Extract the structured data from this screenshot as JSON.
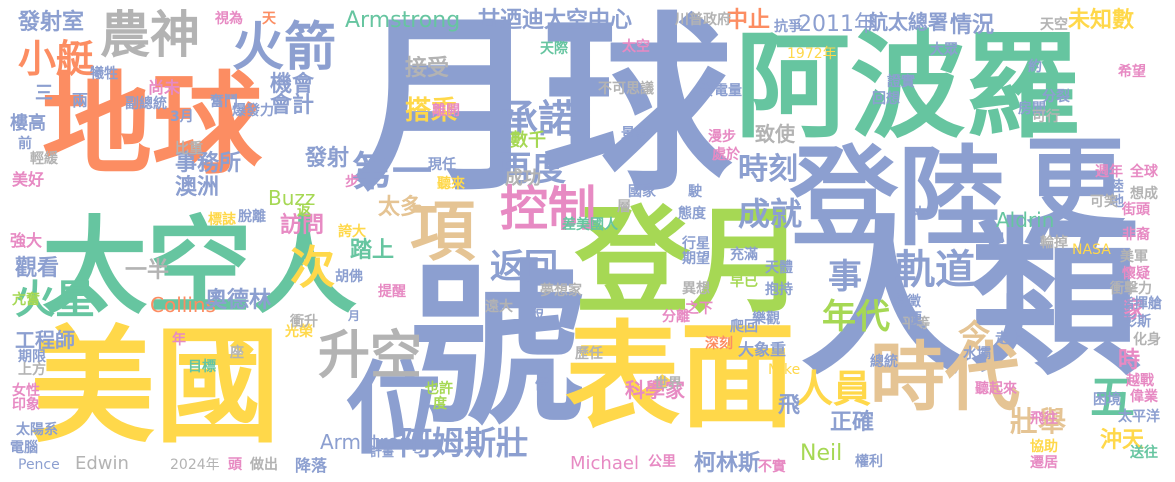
{
  "palette": {
    "blue": "#8c9fd0",
    "green": "#66c5a0",
    "yellow": "#ffd84a",
    "orange": "#fc8d62",
    "pink": "#e78ac3",
    "lime": "#a6d854",
    "tan": "#e5c494",
    "gray": "#b3b3b3"
  },
  "words": [
    {
      "text": "月球",
      "color": "blue"
    },
    {
      "text": "阿波羅",
      "color": "green"
    },
    {
      "text": "地球",
      "color": "orange"
    },
    {
      "text": "太空人",
      "color": "green"
    },
    {
      "text": "美國",
      "color": "yellow"
    },
    {
      "text": "號",
      "color": "blue"
    },
    {
      "text": "登月",
      "color": "lime"
    },
    {
      "text": "登陸",
      "color": "blue"
    },
    {
      "text": "更",
      "color": "blue"
    },
    {
      "text": "人類",
      "color": "blue"
    },
    {
      "text": "表面",
      "color": "yellow"
    },
    {
      "text": "農神",
      "color": "gray"
    },
    {
      "text": "火箭",
      "color": "blue"
    },
    {
      "text": "項",
      "color": "tan"
    },
    {
      "text": "位",
      "color": "blue"
    },
    {
      "text": "時代",
      "color": "tan"
    },
    {
      "text": "升空",
      "color": "gray"
    },
    {
      "text": "控制",
      "color": "pink"
    },
    {
      "text": "承諾",
      "color": "blue"
    },
    {
      "text": "再度",
      "color": "blue"
    },
    {
      "text": "第一",
      "color": "blue"
    },
    {
      "text": "成就",
      "color": "blue"
    },
    {
      "text": "返回",
      "color": "blue"
    },
    {
      "text": "阿姆斯壯",
      "color": "blue"
    },
    {
      "text": "人員",
      "color": "yellow"
    },
    {
      "text": "年代",
      "color": "lime"
    },
    {
      "text": "軌道",
      "color": "blue"
    },
    {
      "text": "事",
      "color": "blue"
    },
    {
      "text": "次",
      "color": "yellow"
    },
    {
      "text": "五",
      "color": "green"
    },
    {
      "text": "令",
      "color": "tan"
    },
    {
      "text": "火星",
      "color": "green"
    },
    {
      "text": "小艇",
      "color": "orange"
    },
    {
      "text": "時刻",
      "color": "blue"
    },
    {
      "text": "發射室",
      "color": "blue"
    },
    {
      "text": "Armstrong",
      "color": "green"
    },
    {
      "text": "甘迺迪太空中心",
      "color": "blue"
    },
    {
      "text": "中止",
      "color": "orange"
    },
    {
      "text": "航太總署",
      "color": "blue"
    },
    {
      "text": "2011年",
      "color": "blue"
    },
    {
      "text": "情況",
      "color": "blue"
    },
    {
      "text": "未知數",
      "color": "yellow"
    },
    {
      "text": "機會",
      "color": "blue"
    },
    {
      "text": "會計",
      "color": "blue"
    },
    {
      "text": "發射",
      "color": "blue"
    },
    {
      "text": "接受",
      "color": "gray"
    },
    {
      "text": "搭乘",
      "color": "yellow"
    },
    {
      "text": "事務所",
      "color": "blue"
    },
    {
      "text": "澳洲",
      "color": "blue"
    },
    {
      "text": "一半",
      "color": "gray"
    },
    {
      "text": "觀看",
      "color": "blue"
    },
    {
      "text": "訪問",
      "color": "pink"
    },
    {
      "text": "太多",
      "color": "tan"
    },
    {
      "text": "踏上",
      "color": "green"
    },
    {
      "text": "Buzz",
      "color": "lime"
    },
    {
      "text": "Collins",
      "color": "orange"
    },
    {
      "text": "奧德林",
      "color": "blue"
    },
    {
      "text": "工程師",
      "color": "blue"
    },
    {
      "text": "Armstrong",
      "color": "blue"
    },
    {
      "text": "正確",
      "color": "blue"
    },
    {
      "text": "壯舉",
      "color": "tan"
    },
    {
      "text": "沖天",
      "color": "yellow"
    },
    {
      "text": "時",
      "color": "pink"
    },
    {
      "text": "家",
      "color": "pink"
    },
    {
      "text": "Aldrin",
      "color": "green"
    },
    {
      "text": "Neil",
      "color": "lime"
    },
    {
      "text": "柯林斯",
      "color": "blue"
    },
    {
      "text": "Michael",
      "color": "pink"
    },
    {
      "text": "Edwin",
      "color": "gray"
    },
    {
      "text": "科學家",
      "color": "pink"
    },
    {
      "text": "飛",
      "color": "blue"
    },
    {
      "text": "致使",
      "color": "gray"
    },
    {
      "text": "成功",
      "color": "gray"
    },
    {
      "text": "數千",
      "color": "lime"
    },
    {
      "text": "三",
      "color": "blue"
    },
    {
      "text": "兩",
      "color": "blue"
    },
    {
      "text": "尚未",
      "color": "pink"
    },
    {
      "text": "前",
      "color": "blue"
    },
    {
      "text": "樓高",
      "color": "blue"
    },
    {
      "text": "輕緩",
      "color": "gray"
    },
    {
      "text": "美好",
      "color": "pink"
    },
    {
      "text": "強大",
      "color": "pink"
    },
    {
      "text": "亢奮",
      "color": "lime"
    },
    {
      "text": "期限",
      "color": "blue"
    },
    {
      "text": "上方",
      "color": "gray"
    },
    {
      "text": "女性",
      "color": "pink"
    },
    {
      "text": "印象",
      "color": "pink"
    },
    {
      "text": "太陽系",
      "color": "blue"
    },
    {
      "text": "電腦",
      "color": "blue"
    },
    {
      "text": "Pence",
      "color": "blue"
    },
    {
      "text": "2024年",
      "color": "gray"
    },
    {
      "text": "頭",
      "color": "pink"
    },
    {
      "text": "做出",
      "color": "gray"
    },
    {
      "text": "降落",
      "color": "blue"
    },
    {
      "text": "計畫",
      "color": "blue"
    },
    {
      "text": "也許",
      "color": "lime"
    },
    {
      "text": "度",
      "color": "lime"
    },
    {
      "text": "目標",
      "color": "green"
    },
    {
      "text": "年",
      "color": "pink"
    },
    {
      "text": "座",
      "color": "gray"
    },
    {
      "text": "光榮",
      "color": "yellow"
    },
    {
      "text": "衝升",
      "color": "gray"
    },
    {
      "text": "胡佛",
      "color": "blue"
    },
    {
      "text": "提醒",
      "color": "pink"
    },
    {
      "text": "月",
      "color": "blue"
    },
    {
      "text": "誇大",
      "color": "yellow"
    },
    {
      "text": "遠大",
      "color": "gray"
    },
    {
      "text": "短",
      "color": "blue"
    },
    {
      "text": "夢想家",
      "color": "gray"
    },
    {
      "text": "差美國人",
      "color": "green"
    },
    {
      "text": "行星",
      "color": "blue"
    },
    {
      "text": "期望",
      "color": "blue"
    },
    {
      "text": "分離",
      "color": "pink"
    },
    {
      "text": "充滿",
      "color": "blue"
    },
    {
      "text": "早已",
      "color": "lime"
    },
    {
      "text": "天體",
      "color": "blue"
    },
    {
      "text": "抱持",
      "color": "blue"
    },
    {
      "text": "樂觀",
      "color": "blue"
    },
    {
      "text": "爬回",
      "color": "blue"
    },
    {
      "text": "深刻",
      "color": "orange"
    },
    {
      "text": "大象重",
      "color": "blue"
    },
    {
      "text": "歷任",
      "color": "gray"
    },
    {
      "text": "世界",
      "color": "gray"
    },
    {
      "text": "假",
      "color": "blue"
    },
    {
      "text": "公里",
      "color": "pink"
    },
    {
      "text": "之下",
      "color": "pink"
    },
    {
      "text": "不實",
      "color": "pink"
    },
    {
      "text": "權利",
      "color": "blue"
    },
    {
      "text": "遷居",
      "color": "pink"
    },
    {
      "text": "協助",
      "color": "yellow"
    },
    {
      "text": "送往",
      "color": "green"
    },
    {
      "text": "太平洋",
      "color": "blue"
    },
    {
      "text": "偉業",
      "color": "pink"
    },
    {
      "text": "越戰",
      "color": "pink"
    },
    {
      "text": "困境",
      "color": "blue"
    },
    {
      "text": "飛往",
      "color": "pink"
    },
    {
      "text": "Mike",
      "color": "yellow"
    },
    {
      "text": "聽起來",
      "color": "pink"
    },
    {
      "text": "水壩",
      "color": "blue"
    },
    {
      "text": "總統",
      "color": "blue"
    },
    {
      "text": "平等",
      "color": "gray"
    },
    {
      "text": "走上",
      "color": "blue"
    },
    {
      "text": "化身",
      "color": "gray"
    },
    {
      "text": "彭斯",
      "color": "blue"
    },
    {
      "text": "指揮艙",
      "color": "blue"
    },
    {
      "text": "衝擊力",
      "color": "gray"
    },
    {
      "text": "懷疑",
      "color": "pink"
    },
    {
      "text": "美軍",
      "color": "gray"
    },
    {
      "text": "NASA",
      "color": "yellow"
    },
    {
      "text": "輪掉",
      "color": "gray"
    },
    {
      "text": "非裔",
      "color": "pink"
    },
    {
      "text": "街頭",
      "color": "pink"
    },
    {
      "text": "想成",
      "color": "gray"
    },
    {
      "text": "全球",
      "color": "pink"
    },
    {
      "text": "週年",
      "color": "pink"
    },
    {
      "text": "陸",
      "color": "blue"
    },
    {
      "text": "地",
      "color": "blue"
    },
    {
      "text": "可笑",
      "color": "gray"
    },
    {
      "text": "中",
      "color": "blue"
    },
    {
      "text": "象徵",
      "color": "blue"
    },
    {
      "text": "便",
      "color": "blue"
    },
    {
      "text": "房間",
      "color": "blue"
    },
    {
      "text": "分裂",
      "color": "blue"
    },
    {
      "text": "約",
      "color": "blue"
    },
    {
      "text": "希望",
      "color": "pink"
    },
    {
      "text": "可行",
      "color": "gray"
    },
    {
      "text": "回想",
      "color": "blue"
    },
    {
      "text": "證實",
      "color": "blue"
    },
    {
      "text": "大眾",
      "color": "blue"
    },
    {
      "text": "天空",
      "color": "gray"
    },
    {
      "text": "1972年",
      "color": "yellow"
    },
    {
      "text": "抗爭",
      "color": "blue"
    },
    {
      "text": "川普政府",
      "color": "gray"
    },
    {
      "text": "天",
      "color": "orange"
    },
    {
      "text": "視為",
      "color": "pink"
    },
    {
      "text": "副總統",
      "color": "blue"
    },
    {
      "text": "奮鬥",
      "color": "blue"
    },
    {
      "text": "犧牲",
      "color": "blue"
    },
    {
      "text": "3月",
      "color": "blue"
    },
    {
      "text": "爆發力",
      "color": "blue"
    },
    {
      "text": "比重",
      "color": "gray"
    },
    {
      "text": "離開",
      "color": "pink"
    },
    {
      "text": "現任",
      "color": "blue"
    },
    {
      "text": "聽來",
      "color": "yellow"
    },
    {
      "text": "返",
      "color": "lime"
    },
    {
      "text": "步",
      "color": "pink"
    },
    {
      "text": "脫離",
      "color": "blue"
    },
    {
      "text": "標誌",
      "color": "yellow"
    },
    {
      "text": "層",
      "color": "gray"
    },
    {
      "text": "態度",
      "color": "blue"
    },
    {
      "text": "國家",
      "color": "blue"
    },
    {
      "text": "駛",
      "color": "blue"
    },
    {
      "text": "處於",
      "color": "pink"
    },
    {
      "text": "漫步",
      "color": "pink"
    },
    {
      "text": "景象",
      "color": "blue"
    },
    {
      "text": "異想",
      "color": "gray"
    },
    {
      "text": "發電量",
      "color": "blue"
    },
    {
      "text": "不可思議",
      "color": "gray"
    },
    {
      "text": "太空",
      "color": "pink"
    },
    {
      "text": "天際",
      "color": "green"
    }
  ]
}
